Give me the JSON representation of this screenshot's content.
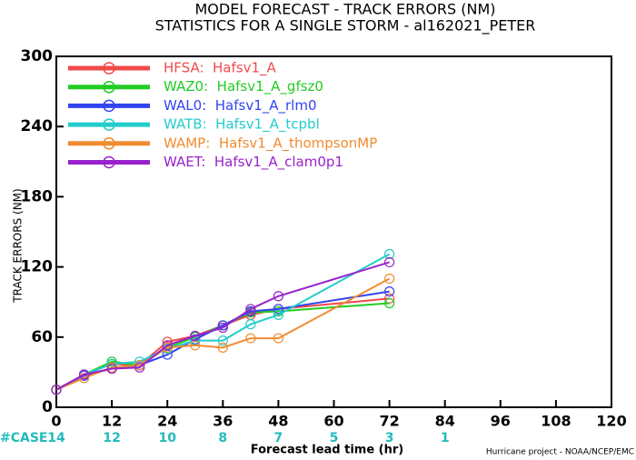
{
  "chart_data": {
    "type": "line",
    "title": "MODEL FORECAST - TRACK ERRORS (NM)",
    "subtitle": "STATISTICS FOR A SINGLE STORM - al162021_PETER",
    "x_label": "Forecast lead time (hr)",
    "y_label": "TRACK ERRORS (NM)",
    "x": [
      0,
      6,
      12,
      18,
      24,
      30,
      36,
      42,
      48,
      72
    ],
    "xlim": [
      0,
      120
    ],
    "xticks": [
      0,
      12,
      24,
      36,
      48,
      60,
      72,
      84,
      96,
      108,
      120
    ],
    "ylim": [
      0,
      300
    ],
    "yticks": [
      0,
      60,
      120,
      180,
      240,
      300
    ],
    "legend": "upper left",
    "series": [
      {
        "name": "HFSA:  Hafsv1_A",
        "color": "#f04a4a",
        "values": [
          15,
          28,
          37,
          36,
          56,
          61,
          70,
          79,
          84,
          93
        ]
      },
      {
        "name": "WAZ0:  Hafsv1_A_gfsz0",
        "color": "#22cc22",
        "values": [
          15,
          28,
          39,
          36,
          51,
          60,
          70,
          81,
          82,
          89
        ]
      },
      {
        "name": "WAL0:  Hafsv1_A_rlm0",
        "color": "#3344ee",
        "values": [
          15,
          27,
          33,
          36,
          45,
          58,
          70,
          82,
          84,
          99
        ]
      },
      {
        "name": "WATB:  Hafsv1_A_tcpbl",
        "color": "#22cccc",
        "values": [
          15,
          28,
          37,
          39,
          50,
          57,
          57,
          71,
          79,
          131
        ]
      },
      {
        "name": "WAMP:  Hafsv1_A_thompsonMP",
        "color": "#f08c30",
        "values": [
          15,
          25,
          34,
          36,
          51,
          53,
          51,
          59,
          59,
          110
        ]
      },
      {
        "name": "WAET:  Hafsv1_A_clam0p1",
        "color": "#9922cc",
        "values": [
          15,
          28,
          33,
          34,
          53,
          61,
          68,
          84,
          95,
          124
        ]
      }
    ],
    "cases": {
      "label": "#CASE",
      "x": [
        0,
        12,
        24,
        36,
        48,
        60,
        72,
        84
      ],
      "values": [
        14,
        12,
        10,
        8,
        7,
        5,
        3,
        1
      ],
      "color": "#22bbbb"
    },
    "footer": "Hurricane project - NOAA/NCEP/EMC"
  }
}
